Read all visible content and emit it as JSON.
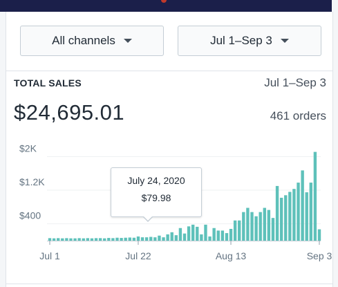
{
  "filters": {
    "channel": "All channels",
    "date_range": "Jul 1–Sep 3"
  },
  "summary": {
    "label": "TOTAL SALES",
    "date_range": "Jul 1–Sep 3",
    "amount": "$24,695.01",
    "orders": "461 orders"
  },
  "tooltip": {
    "date": "July 24, 2020",
    "value": "$79.98"
  },
  "colors": {
    "bar": "#5ec1ba",
    "topbar": "#1b1f4a"
  },
  "chart_data": {
    "type": "bar",
    "ylim": [
      0,
      2400
    ],
    "y_ticks": [
      "$2K",
      "$1.2K",
      "$400"
    ],
    "y_tick_values": [
      2000,
      1200,
      400
    ],
    "x_tick_labels": [
      "Jul 1",
      "Jul 22",
      "Aug 13",
      "Sep 3"
    ],
    "x_tick_indices": [
      0,
      21,
      43,
      64
    ],
    "grid": true,
    "categories": [
      "Jul 1",
      "Jul 2",
      "Jul 3",
      "Jul 4",
      "Jul 5",
      "Jul 6",
      "Jul 7",
      "Jul 8",
      "Jul 9",
      "Jul 10",
      "Jul 11",
      "Jul 12",
      "Jul 13",
      "Jul 14",
      "Jul 15",
      "Jul 16",
      "Jul 17",
      "Jul 18",
      "Jul 19",
      "Jul 20",
      "Jul 21",
      "Jul 22",
      "Jul 23",
      "Jul 24",
      "Jul 25",
      "Jul 26",
      "Jul 27",
      "Jul 28",
      "Jul 29",
      "Jul 30",
      "Jul 31",
      "Aug 1",
      "Aug 2",
      "Aug 3",
      "Aug 4",
      "Aug 5",
      "Aug 6",
      "Aug 7",
      "Aug 8",
      "Aug 9",
      "Aug 10",
      "Aug 11",
      "Aug 12",
      "Aug 13",
      "Aug 14",
      "Aug 15",
      "Aug 16",
      "Aug 17",
      "Aug 18",
      "Aug 19",
      "Aug 20",
      "Aug 21",
      "Aug 22",
      "Aug 23",
      "Aug 24",
      "Aug 25",
      "Aug 26",
      "Aug 27",
      "Aug 28",
      "Aug 29",
      "Aug 30",
      "Aug 31",
      "Sep 1",
      "Sep 2",
      "Sep 3"
    ],
    "values": [
      60,
      55,
      60,
      55,
      60,
      55,
      55,
      60,
      55,
      60,
      55,
      60,
      60,
      55,
      65,
      60,
      70,
      65,
      70,
      75,
      70,
      100,
      80,
      80,
      90,
      80,
      120,
      80,
      150,
      200,
      130,
      300,
      170,
      340,
      380,
      330,
      150,
      380,
      100,
      300,
      240,
      240,
      180,
      280,
      480,
      480,
      680,
      780,
      680,
      580,
      680,
      780,
      730,
      540,
      1300,
      1020,
      1080,
      1160,
      1230,
      1380,
      1670,
      1150,
      1380,
      2110,
      270
    ]
  }
}
